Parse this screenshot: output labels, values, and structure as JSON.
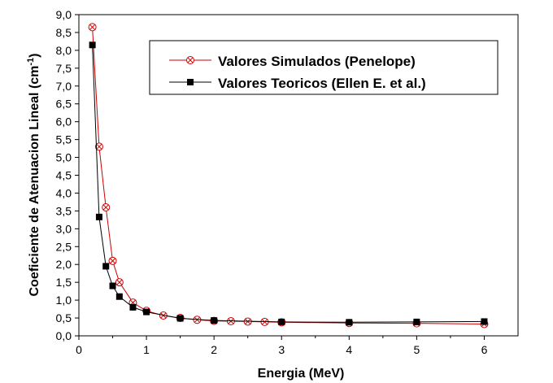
{
  "chart_data": {
    "type": "line",
    "xlabel": "Energia (MeV)",
    "ylabel": {
      "main": "Coeficiente de Atenuacion Lineal (cm",
      "sup": "-1",
      "close": ")"
    },
    "xlim": [
      0,
      6.5
    ],
    "ylim": [
      0,
      9
    ],
    "x_ticks": [
      0,
      1,
      2,
      3,
      4,
      5,
      6
    ],
    "x_tick_labels": [
      "0",
      "1",
      "2",
      "3",
      "4",
      "5",
      "6"
    ],
    "y_ticks": [
      0,
      0.5,
      1,
      1.5,
      2,
      2.5,
      3,
      3.5,
      4,
      4.5,
      5,
      5.5,
      6,
      6.5,
      7,
      7.5,
      8,
      8.5,
      9
    ],
    "y_tick_labels": [
      "0,0",
      "0,5",
      "1,0",
      "1,5",
      "2,0",
      "2,5",
      "3,0",
      "3,5",
      "4,0",
      "4,5",
      "5,0",
      "5,5",
      "6,0",
      "6,5",
      "7,0",
      "7,5",
      "8,0",
      "8,5",
      "9,0"
    ],
    "grid": false,
    "legend_position": "top-right",
    "series": [
      {
        "name": "Valores Simulados (Penelope)",
        "color": "#cc0000",
        "marker": "circle-x",
        "x": [
          0.2,
          0.3,
          0.4,
          0.5,
          0.6,
          0.8,
          1.0,
          1.25,
          1.5,
          1.75,
          2.0,
          2.25,
          2.5,
          2.75,
          3.0,
          4.0,
          5.0,
          6.0
        ],
        "y": [
          8.65,
          5.3,
          3.6,
          2.1,
          1.5,
          0.93,
          0.7,
          0.57,
          0.5,
          0.45,
          0.42,
          0.41,
          0.4,
          0.39,
          0.38,
          0.36,
          0.35,
          0.33
        ]
      },
      {
        "name": "Valores Teoricos (Ellen E. et al.)",
        "color": "#000000",
        "marker": "square",
        "x": [
          0.2,
          0.3,
          0.4,
          0.5,
          0.6,
          0.8,
          1.0,
          1.5,
          2.0,
          3.0,
          4.0,
          5.0,
          6.0
        ],
        "y": [
          8.15,
          3.33,
          1.95,
          1.4,
          1.1,
          0.8,
          0.67,
          0.49,
          0.43,
          0.39,
          0.38,
          0.39,
          0.4
        ]
      }
    ]
  }
}
